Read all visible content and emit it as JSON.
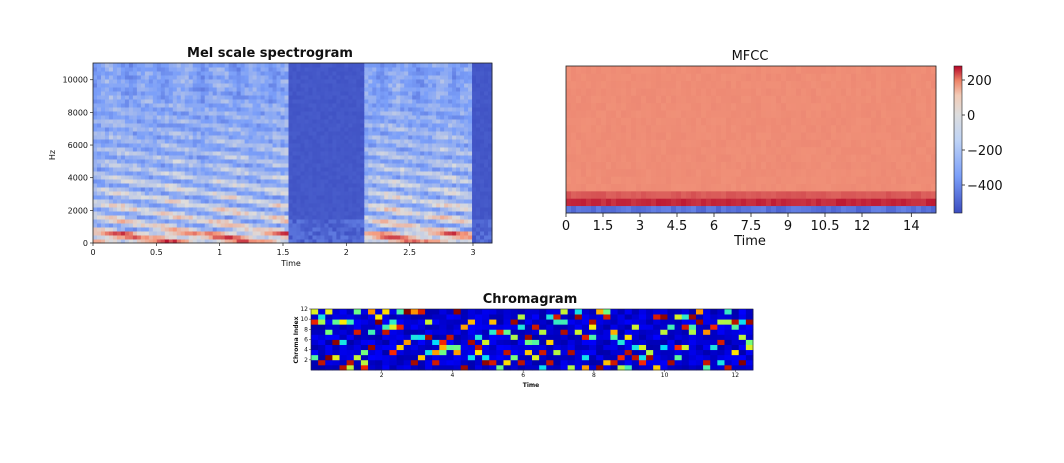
{
  "charts": {
    "mel": {
      "title": "Mel scale spectrogram",
      "xlabel": "Time",
      "ylabel": "Hz",
      "xticks": [
        "0",
        "0.5",
        "1",
        "1.5",
        "2",
        "2.5",
        "3"
      ],
      "yticks": [
        "0",
        "2000",
        "4000",
        "6000",
        "8000",
        "10000"
      ]
    },
    "mfcc": {
      "title": "MFCC",
      "xlabel": "Time",
      "xticks": [
        "0",
        "1.5",
        "3",
        "4.5",
        "6",
        "7.5",
        "9",
        "10.5",
        "12",
        "14"
      ],
      "colorbar_ticks": [
        "200",
        "0",
        "−200",
        "−400"
      ]
    },
    "chroma": {
      "title": "Chromagram",
      "xlabel": "Time",
      "ylabel": "Chroma Index",
      "xticks": [
        "2",
        "4",
        "6",
        "8",
        "10",
        "12"
      ],
      "yticks": [
        "2",
        "4",
        "6",
        "8",
        "10",
        "12"
      ]
    }
  },
  "chart_data": [
    {
      "type": "heatmap",
      "title": "Mel scale spectrogram",
      "xlabel": "Time",
      "ylabel": "Hz",
      "xlim": [
        0,
        3.15
      ],
      "ylim": [
        0,
        11025
      ],
      "colormap": "coolwarm",
      "colors": {
        "low": "#3b4cc0",
        "mid": "#dddddd",
        "high": "#b40426"
      },
      "speech_segments": [
        [
          0.0,
          1.55
        ],
        [
          2.15,
          3.0
        ]
      ],
      "silence_segment": [
        1.55,
        2.15
      ],
      "dominant_energy_band_hz": [
        0,
        2000
      ]
    },
    {
      "type": "heatmap",
      "title": "MFCC",
      "xlabel": "Time",
      "xlim": [
        0,
        15
      ],
      "colormap": "coolwarm",
      "colorbar": {
        "min": -560,
        "max": 280,
        "ticks": [
          200,
          0,
          -200,
          -400
        ]
      },
      "typical_value": 90,
      "row_values": {
        "row_0": -500,
        "row_1": 210,
        "row_2": 150,
        "rows_3_up": 90
      }
    },
    {
      "type": "heatmap",
      "title": "Chromagram",
      "xlabel": "Time",
      "ylabel": "Chroma Index",
      "xlim": [
        0,
        12.5
      ],
      "ylim": [
        0,
        12
      ],
      "colormap": "jet",
      "colors": {
        "low": "#00007f",
        "high": "#7f0000"
      }
    }
  ]
}
